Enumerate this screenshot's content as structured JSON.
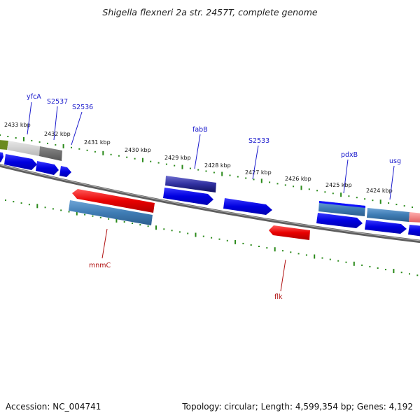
{
  "title": "Shigella flexneri 2a str. 2457T, complete genome",
  "footer": {
    "accession": "Accession: NC_004741",
    "summary": "Topology: circular; Length: 4,599,354 bp; Genes: 4,192"
  },
  "scale": {
    "labels": [
      "2433 kbp",
      "2432 kbp",
      "2431 kbp",
      "2430 kbp",
      "2429 kbp",
      "2428 kbp",
      "2427 kbp",
      "2426 kbp",
      "2425 kbp",
      "2424 kbp"
    ]
  },
  "genes_top": [
    "yfcA",
    "S2537",
    "S2536",
    "fabB",
    "S2533",
    "pdxB",
    "usg"
  ],
  "genes_bottom": [
    "mnmC",
    "flk"
  ],
  "colors": {
    "forward": "#0a0ae6",
    "reverse": "#e60a0a",
    "steel": "#4a84b8",
    "backbone": "#777777",
    "tick": "#2a8a1a",
    "label_top": "#1a1acc",
    "label_bottom": "#b01010"
  }
}
